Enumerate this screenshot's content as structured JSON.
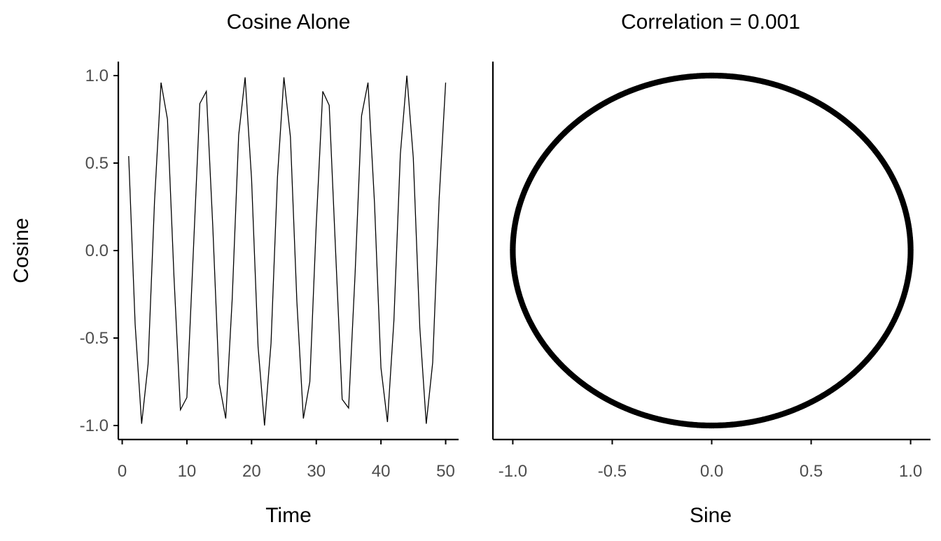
{
  "chart_data": [
    {
      "type": "line",
      "title": "Cosine Alone",
      "xlabel": "Time",
      "ylabel": "Cosine",
      "xlim": [
        -0.6,
        52
      ],
      "ylim": [
        -1.08,
        1.08
      ],
      "x_ticks": [
        0,
        10,
        20,
        30,
        40,
        50
      ],
      "x_tick_labels": [
        "0",
        "10",
        "20",
        "30",
        "40",
        "50"
      ],
      "y_ticks": [
        1.0,
        0.5,
        0.0,
        -0.5,
        -1.0
      ],
      "y_tick_labels": [
        "1.0",
        "0.5",
        "0.0",
        "-0.5",
        "-1.0"
      ],
      "grid": false,
      "legend": "none",
      "line_color": "#000000",
      "x": [
        1,
        2,
        3,
        4,
        5,
        6,
        7,
        8,
        9,
        10,
        11,
        12,
        13,
        14,
        15,
        16,
        17,
        18,
        19,
        20,
        21,
        22,
        23,
        24,
        25,
        26,
        27,
        28,
        29,
        30,
        31,
        32,
        33,
        34,
        35,
        36,
        37,
        38,
        39,
        40,
        41,
        42,
        43,
        44,
        45,
        46,
        47,
        48,
        49,
        50
      ],
      "values": [
        0.54,
        -0.42,
        -0.99,
        -0.65,
        0.28,
        0.96,
        0.75,
        -0.15,
        -0.91,
        -0.84,
        0.0,
        0.84,
        0.91,
        0.14,
        -0.76,
        -0.96,
        -0.28,
        0.66,
        0.99,
        0.41,
        -0.55,
        -1.0,
        -0.53,
        0.42,
        0.99,
        0.65,
        -0.29,
        -0.96,
        -0.75,
        0.15,
        0.91,
        0.83,
        -0.01,
        -0.85,
        -0.9,
        -0.13,
        0.77,
        0.96,
        0.27,
        -0.67,
        -0.98,
        -0.4,
        0.55,
        1.0,
        0.53,
        -0.44,
        -0.99,
        -0.64,
        0.3,
        0.96
      ]
    },
    {
      "type": "scatter",
      "title": "Correlation = 0.001",
      "xlabel": "Sine",
      "ylabel": "",
      "xlim": [
        -1.1,
        1.1
      ],
      "ylim": [
        -1.08,
        1.08
      ],
      "x_ticks": [
        -1.0,
        -0.5,
        0.0,
        0.5,
        1.0
      ],
      "x_tick_labels": [
        "-1.0",
        "-0.5",
        "0.0",
        "0.5",
        "1.0"
      ],
      "y_ticks": [],
      "grid": false,
      "legend": "none",
      "point_color": "#000000",
      "n_points": 10000,
      "relationship": "points lie on the unit circle: Sine = sin(t), Cosine = cos(t)",
      "correlation": 0.001
    }
  ]
}
